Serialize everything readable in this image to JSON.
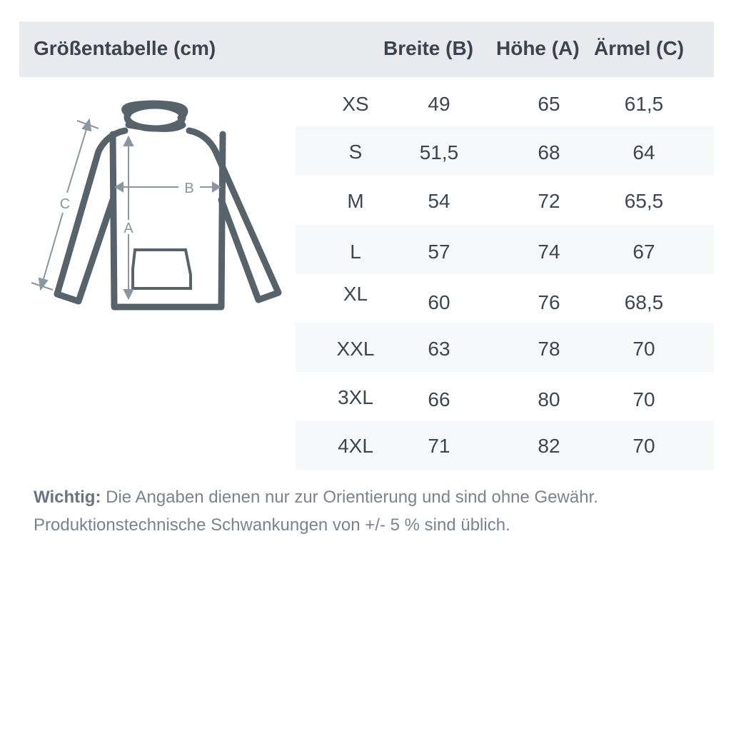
{
  "header": {
    "title": "Größentabelle (cm)",
    "columns": [
      "Breite (B)",
      "Höhe (A)",
      "Ärmel (C)"
    ]
  },
  "diagram": {
    "labels": {
      "width": "B",
      "height": "A",
      "sleeve": "C"
    },
    "icon": "hoodie-outline"
  },
  "rows": [
    {
      "size": "XS",
      "breite": "49",
      "hoehe": "65",
      "aermel": "61,5"
    },
    {
      "size": "S",
      "breite": "51,5",
      "hoehe": "68",
      "aermel": "64"
    },
    {
      "size": "M",
      "breite": "54",
      "hoehe": "72",
      "aermel": "65,5"
    },
    {
      "size": "L",
      "breite": "57",
      "hoehe": "74",
      "aermel": "67"
    },
    {
      "size": "XL",
      "breite": "60",
      "hoehe": "76",
      "aermel": "68,5"
    },
    {
      "size": "XXL",
      "breite": "63",
      "hoehe": "78",
      "aermel": "70"
    },
    {
      "size": "3XL",
      "breite": "66",
      "hoehe": "80",
      "aermel": "70"
    },
    {
      "size": "4XL",
      "breite": "71",
      "hoehe": "82",
      "aermel": "70"
    }
  ],
  "note": {
    "label": "Wichtig:",
    "line1": "Die Angaben dienen nur zur Orientierung und sind ohne Gewähr.",
    "line2": "Produktionstechnische Schwankungen von +/- 5 % sind üblich."
  },
  "colors": {
    "header_bg": "#e9eaee",
    "stripe": "#f7f8fa",
    "outline": "#56636b",
    "text": "#3e4551"
  }
}
